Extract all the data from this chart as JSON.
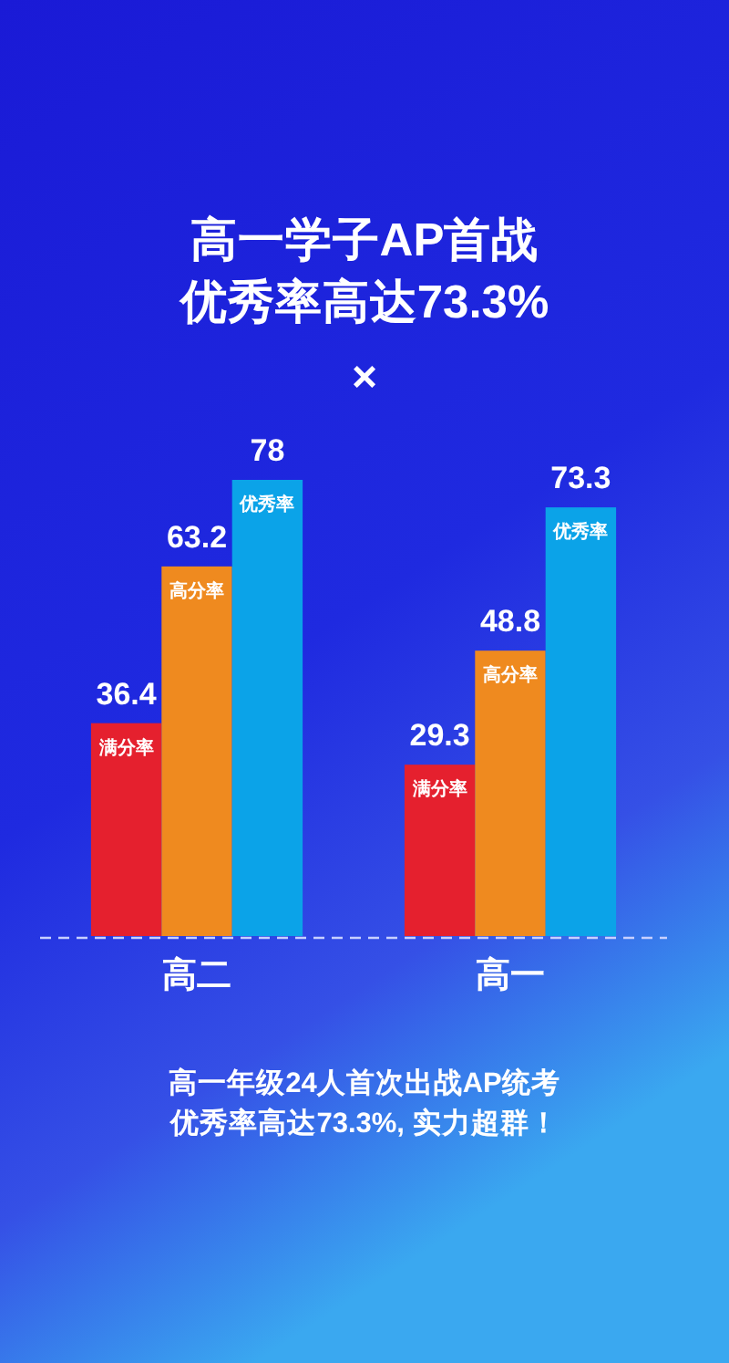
{
  "chart_data": {
    "type": "bar",
    "title": "高一学子AP首战优秀率高达73.3%",
    "categories": [
      "高二",
      "高一"
    ],
    "series": [
      {
        "name": "满分率",
        "color": "#e5202e",
        "values": [
          36.4,
          29.3
        ]
      },
      {
        "name": "高分率",
        "color": "#ef8a1f",
        "values": [
          63.2,
          48.8
        ]
      },
      {
        "name": "优秀率",
        "color": "#0ba3e8",
        "values": [
          78,
          73.3
        ]
      }
    ],
    "data_labels": true,
    "annotations": [
      "×",
      "高一年级24人首次出战AP统考优秀率高达73.3%, 实力超群！"
    ]
  }
}
